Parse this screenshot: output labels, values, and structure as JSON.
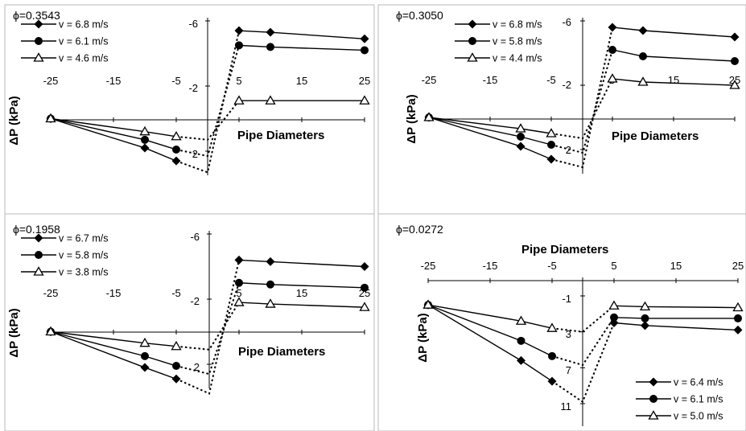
{
  "chart_data": [
    {
      "type": "line",
      "title": "ϕ=0.3543",
      "xlabel": "Pipe Diameters",
      "ylabel": "ΔP (kPa)",
      "xlim": [
        -25,
        25
      ],
      "ylim": [
        -6,
        3
      ],
      "y_inverted": true,
      "x_ticks": [
        -25,
        -15,
        -5,
        5,
        15,
        25
      ],
      "y_ticks": [
        -6,
        -2,
        2
      ],
      "grid": false,
      "legend_position": "top-left",
      "x_upstream": [
        -25,
        -10,
        -5
      ],
      "x_downstream": [
        5,
        10,
        25
      ],
      "series": [
        {
          "name": "v = 6.8 m/s",
          "marker": "diamond",
          "upstream": [
            0,
            1.8,
            2.6
          ],
          "downstream": [
            -5.4,
            -5.3,
            -4.9
          ],
          "junction": 3.3
        },
        {
          "name": "v = 6.1 m/s",
          "marker": "circle",
          "upstream": [
            0,
            1.3,
            1.9
          ],
          "downstream": [
            -4.5,
            -4.4,
            -4.2
          ],
          "junction": 2.3
        },
        {
          "name": "v = 4.6 m/s",
          "marker": "triangle",
          "upstream": [
            0,
            0.8,
            1.1
          ],
          "downstream": [
            -1.1,
            -1.1,
            -1.1
          ],
          "junction": 1.3
        }
      ]
    },
    {
      "type": "line",
      "title": "ϕ=0.3050",
      "xlabel": "Pipe Diameters",
      "ylabel": "ΔP (kPa)",
      "xlim": [
        -25,
        25
      ],
      "ylim": [
        -6,
        3
      ],
      "y_inverted": true,
      "x_ticks": [
        -25,
        -15,
        -5,
        5,
        15,
        25
      ],
      "y_ticks": [
        -6,
        -2,
        2
      ],
      "grid": false,
      "legend_position": "top-left",
      "x_upstream": [
        -25,
        -10,
        -5
      ],
      "x_downstream": [
        5,
        10,
        25
      ],
      "series": [
        {
          "name": "v = 6.8 m/s",
          "marker": "diamond",
          "upstream": [
            0,
            1.8,
            2.6
          ],
          "downstream": [
            -5.6,
            -5.4,
            -5.0
          ],
          "junction": 3.1
        },
        {
          "name": "v = 5.8 m/s",
          "marker": "circle",
          "upstream": [
            0,
            1.2,
            1.7
          ],
          "downstream": [
            -4.2,
            -3.8,
            -3.5
          ],
          "junction": 2.2
        },
        {
          "name": "v = 4.4 m/s",
          "marker": "triangle",
          "upstream": [
            0,
            0.7,
            1.0
          ],
          "downstream": [
            -2.4,
            -2.2,
            -2.0
          ],
          "junction": 1.3
        }
      ]
    },
    {
      "type": "line",
      "title": "ϕ=0.1958",
      "xlabel": "Pipe Diameters",
      "ylabel": "ΔP (kPa)",
      "xlim": [
        -25,
        25
      ],
      "ylim": [
        -6,
        3
      ],
      "y_inverted": true,
      "x_ticks": [
        -25,
        -15,
        -5,
        5,
        15,
        25
      ],
      "y_ticks": [
        -6,
        -2,
        2
      ],
      "grid": false,
      "legend_position": "top-left",
      "x_upstream": [
        -25,
        -10,
        -5
      ],
      "x_downstream": [
        5,
        10,
        25
      ],
      "series": [
        {
          "name": "v = 6.7 m/s",
          "marker": "diamond",
          "upstream": [
            0,
            2.2,
            2.9
          ],
          "downstream": [
            -4.4,
            -4.3,
            -4.0
          ],
          "junction": 3.8
        },
        {
          "name": "v = 5.8 m/s",
          "marker": "circle",
          "upstream": [
            0,
            1.5,
            2.1
          ],
          "downstream": [
            -3.0,
            -2.9,
            -2.7
          ],
          "junction": 2.6
        },
        {
          "name": "v = 3.8 m/s",
          "marker": "triangle",
          "upstream": [
            0,
            0.7,
            0.9
          ],
          "downstream": [
            -1.8,
            -1.7,
            -1.5
          ],
          "junction": 1.1
        }
      ]
    },
    {
      "type": "line",
      "title": "ϕ=0.0272",
      "xlabel": "Pipe Diameters",
      "ylabel": "ΔP (kPa)",
      "xlim": [
        -25,
        25
      ],
      "ylim": [
        -3,
        12
      ],
      "y_inverted": true,
      "x_ticks": [
        -25,
        -15,
        -5,
        5,
        15,
        25
      ],
      "y_ticks": [
        -1,
        3,
        7,
        11
      ],
      "grid": false,
      "legend_position": "bottom-right",
      "x_upstream": [
        -25,
        -10,
        -5
      ],
      "x_downstream": [
        5,
        10,
        25
      ],
      "series": [
        {
          "name": "v = 6.4 m/s",
          "marker": "diamond",
          "upstream": [
            0,
            6.2,
            8.5
          ],
          "downstream": [
            2.0,
            2.3,
            2.8
          ],
          "junction": 10.8
        },
        {
          "name": "v = 6.1 m/s",
          "marker": "circle",
          "upstream": [
            0,
            4.0,
            5.7
          ],
          "downstream": [
            1.4,
            1.5,
            1.5
          ],
          "junction": 6.7
        },
        {
          "name": "v = 5.0 m/s",
          "marker": "triangle",
          "upstream": [
            0,
            1.8,
            2.6
          ],
          "downstream": [
            0.1,
            0.2,
            0.3
          ],
          "junction": 3.0
        }
      ]
    }
  ]
}
